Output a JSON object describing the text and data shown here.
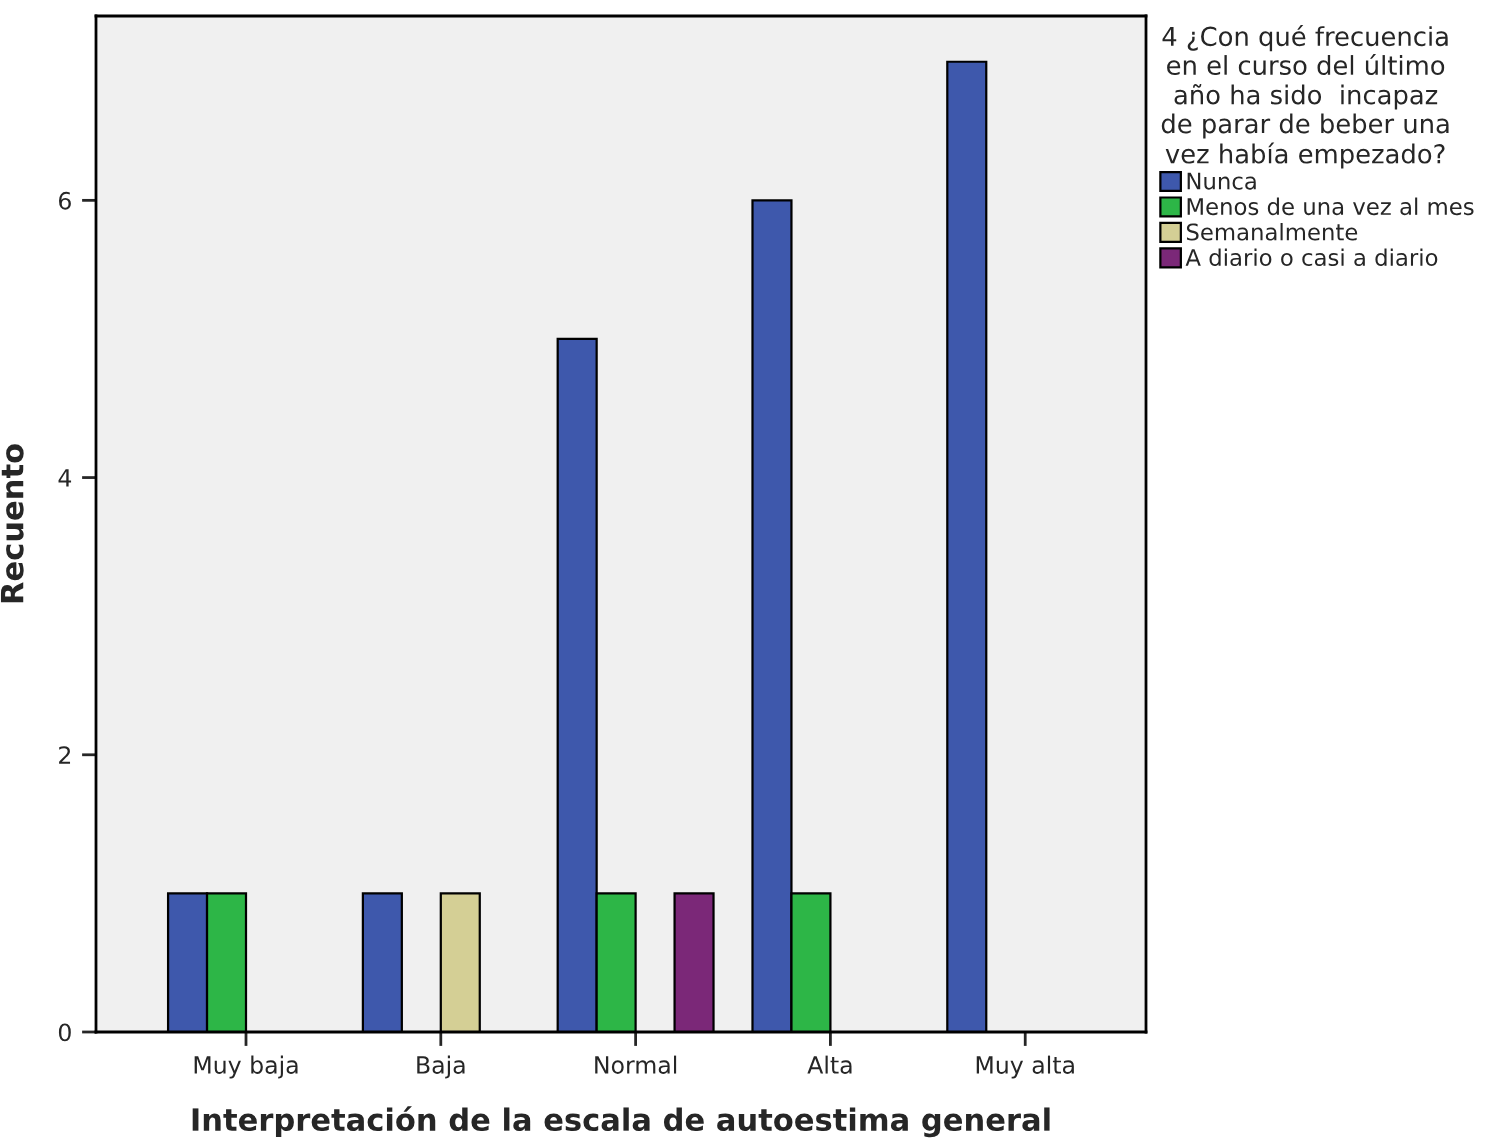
{
  "chart_data": {
    "type": "bar",
    "xlabel": "Interpretación de la escala de autoestima general",
    "ylabel": "Recuento",
    "legend_title": "4 ¿Con qué frecuencia\nen el curso del último\naño ha sido  incapaz\nde parar de beber una\nvez había empezado?",
    "categories": [
      "Muy baja",
      "Baja",
      "Normal",
      "Alta",
      "Muy alta"
    ],
    "series": [
      {
        "name": "Nunca",
        "color": "#3e58ac",
        "values": [
          1,
          1,
          5,
          6,
          7
        ]
      },
      {
        "name": "Menos de una vez al mes",
        "color": "#2db647",
        "values": [
          1,
          null,
          1,
          1,
          null
        ]
      },
      {
        "name": "Semanalmente",
        "color": "#d4cf95",
        "values": [
          null,
          1,
          null,
          null,
          null
        ]
      },
      {
        "name": "A diario o casi a diario",
        "color": "#7b2878",
        "values": [
          null,
          null,
          1,
          null,
          null
        ]
      }
    ],
    "ylim": [
      0,
      7.33
    ],
    "yticks": [
      0,
      2,
      4,
      6
    ],
    "grid": false,
    "legend": "right"
  }
}
